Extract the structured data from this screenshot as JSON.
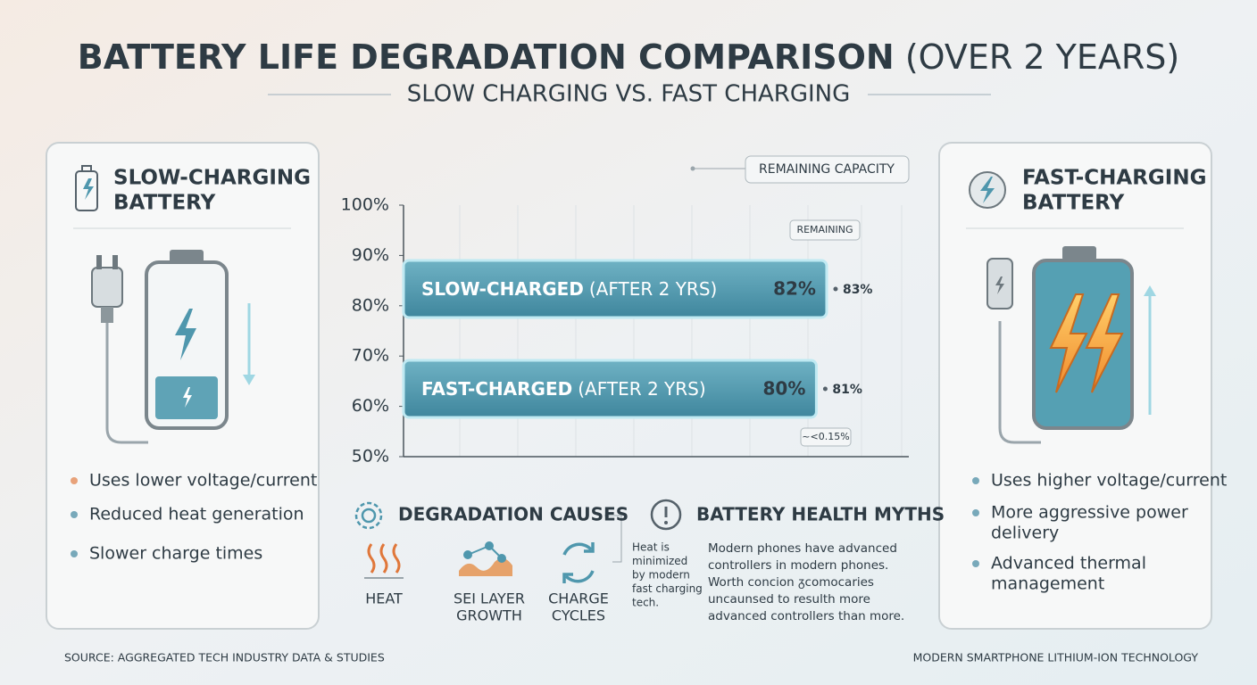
{
  "title": "BATTERY LIFE DEGRADATION COMPARISON",
  "title_suffix": "(OVER 2 YEARS)",
  "subtitle": "SLOW CHARGING VS. FAST CHARGING",
  "left_panel": {
    "title": [
      "SLOW-CHARGING",
      "BATTERY"
    ],
    "bullets": [
      [
        "Uses lower voltage/current"
      ],
      [
        "Reduced heat generation"
      ],
      [
        "Slower charge times"
      ]
    ]
  },
  "right_panel": {
    "title": [
      "FAST-CHARGING",
      "BATTERY"
    ],
    "bullets": [
      [
        "Uses higher voltage/current"
      ],
      [
        "More aggressive power",
        "delivery"
      ],
      [
        "Advanced thermal",
        "management"
      ]
    ]
  },
  "chart_data": {
    "type": "bar",
    "orientation": "horizontal",
    "legend_label": "REMAINING CAPACITY",
    "categories": [
      "SLOW-CHARGED",
      "FAST-CHARGED"
    ],
    "category_notes": [
      "(AFTER 2 YRS)",
      "(AFTER 2 YRS)"
    ],
    "values": [
      82,
      80
    ],
    "value_labels": [
      "82%",
      "80%"
    ],
    "side_notes": [
      "83%",
      "81%"
    ],
    "top_note": "REMAINING",
    "bottom_note": "~<0.15%",
    "color": "#4f97ad",
    "xlim": [
      0,
      100
    ],
    "ylim": [
      50,
      100
    ],
    "yticks": [
      {
        "value": 100,
        "label": "100%"
      },
      {
        "value": 90,
        "label": "90%"
      },
      {
        "value": 80,
        "label": "80%"
      },
      {
        "value": 70,
        "label": "70%"
      },
      {
        "value": 60,
        "label": "60%"
      },
      {
        "value": 50,
        "label": "50%"
      }
    ]
  },
  "causes": {
    "title": "DEGRADATION CAUSES",
    "items": [
      [
        "HEAT"
      ],
      [
        "SEI LAYER",
        "GROWTH"
      ],
      [
        "CHARGE",
        "CYCLES"
      ]
    ],
    "note": [
      "Heat is",
      "minimized",
      "by modern",
      "fast charging",
      "tech."
    ]
  },
  "myths": {
    "title": "BATTERY HEALTH MYTHS",
    "text": [
      "Modern phones have advanced",
      "controllers in modern phones.",
      "Worth concion ᵹcomocaries",
      "uncaunsed to resulth more",
      "advanced controllers than more."
    ]
  },
  "footer": {
    "source": "SOURCE: AGGREGATED TECH INDUSTRY DATA & STUDIES",
    "technology": "MODERN SMARTPHONE LITHIUM-ION TECHNOLOGY"
  }
}
